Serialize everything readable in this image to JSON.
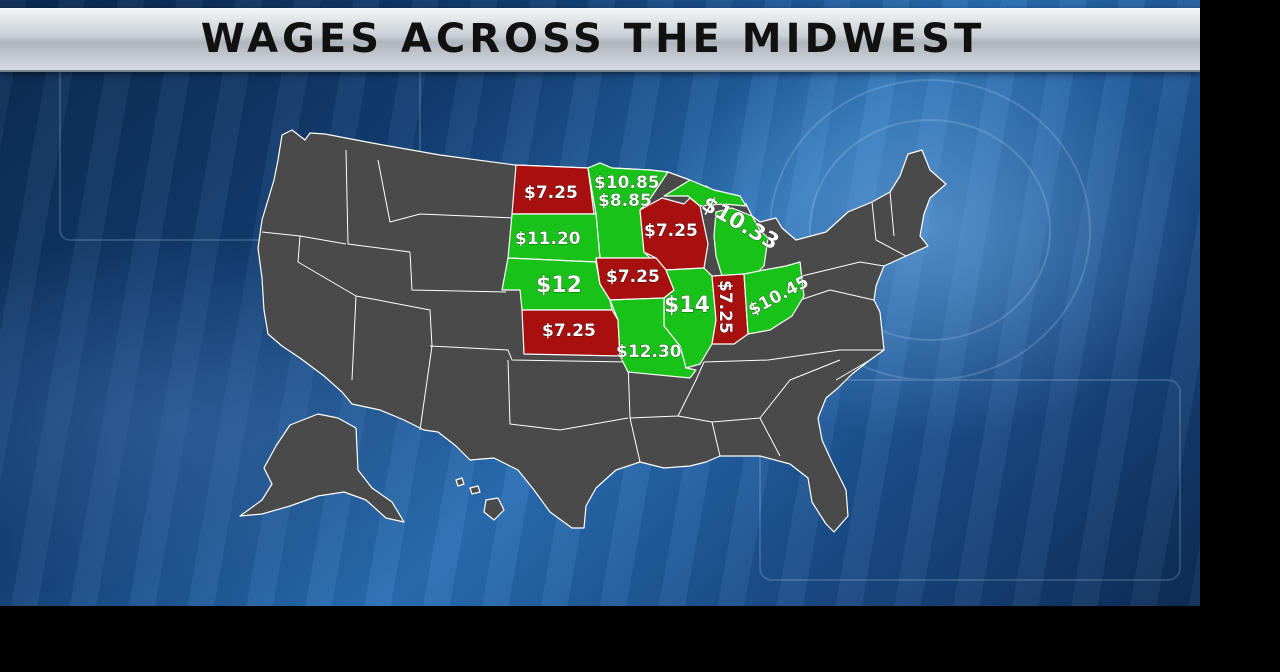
{
  "title": "WAGES ACROSS THE MIDWEST",
  "colors": {
    "state_default": "#4a4a4a",
    "state_high": "#19c219",
    "state_low": "#a80f0f",
    "border": "#ffffff"
  },
  "legend_meaning": "",
  "states": [
    {
      "state": "North Dakota",
      "wage": "$7.25",
      "color_group": "low"
    },
    {
      "state": "Minnesota",
      "wage": "$10.85",
      "color_group": "high"
    },
    {
      "state": "Minnesota (small employers)",
      "wage": "$8.85",
      "color_group": "high"
    },
    {
      "state": "South Dakota",
      "wage": "$11.20",
      "color_group": "high"
    },
    {
      "state": "Wisconsin",
      "wage": "$7.25",
      "color_group": "low"
    },
    {
      "state": "Michigan",
      "wage": "$10.33",
      "color_group": "high"
    },
    {
      "state": "Nebraska",
      "wage": "$12",
      "color_group": "high"
    },
    {
      "state": "Iowa",
      "wage": "$7.25",
      "color_group": "low"
    },
    {
      "state": "Illinois",
      "wage": "$14",
      "color_group": "high"
    },
    {
      "state": "Indiana",
      "wage": "$7.25",
      "color_group": "low"
    },
    {
      "state": "Ohio",
      "wage": "$10.45",
      "color_group": "high"
    },
    {
      "state": "Kansas",
      "wage": "$7.25",
      "color_group": "low"
    },
    {
      "state": "Missouri",
      "wage": "$12.30",
      "color_group": "high"
    }
  ]
}
